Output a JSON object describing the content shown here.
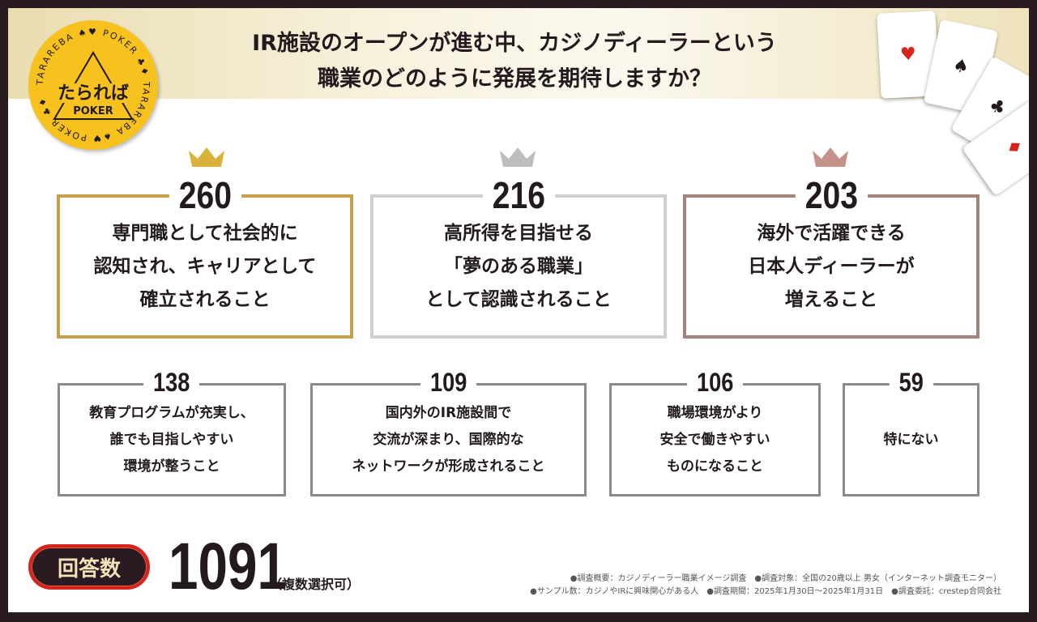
{
  "title_lines": [
    "IR施設のオープンが進む中、カジノディーラーという",
    "職業のどのように発展を期待しますか？"
  ],
  "logo": {
    "brand": "たられば",
    "sub": "POKER",
    "ring": "TARAREBA POKER TARAREBA POKER"
  },
  "colors": {
    "gold": "#c9a04a",
    "silver": "#c8c8c8",
    "bronze": "#a5837c",
    "badge": "#d8221c",
    "frame": "#2a1a22"
  },
  "top_results": [
    {
      "rank": 1,
      "count": "260",
      "text": "専門職として社会的に\n認知され、キャリアとして\n確立されること",
      "icon": "gold-crown-icon"
    },
    {
      "rank": 2,
      "count": "216",
      "text": "高所得を目指せる\n「夢のある職業」\nとして認識されること",
      "icon": "silver-crown-icon"
    },
    {
      "rank": 3,
      "count": "203",
      "text": "海外で活躍できる\n日本人ディーラーが\n増えること",
      "icon": "bronze-crown-icon"
    }
  ],
  "other_results": [
    {
      "count": "138",
      "text": "教育プログラムが充実し、\n誰でも目指しやすい\n環境が整うこと"
    },
    {
      "count": "109",
      "text": "国内外のIR施設間で\n交流が深まり、国際的な\nネットワークが形成されること"
    },
    {
      "count": "106",
      "text": "職場環境がより\n安全で働きやすい\nものになること"
    },
    {
      "count": "59",
      "text": "特にない"
    }
  ],
  "respondents": {
    "label": "回答数",
    "total": "1091",
    "note": "（複数選択可）"
  },
  "notes": [
    "●調査概要：カジノディーラー職業イメージ調査　●調査対象：全国の20歳以上 男女（インターネット調査モニター）",
    "●サンプル数：カジノやIRに興味関心がある人　●調査期間：2025年1月30日～2025年1月31日　●調査委託：crestep合同会社"
  ]
}
